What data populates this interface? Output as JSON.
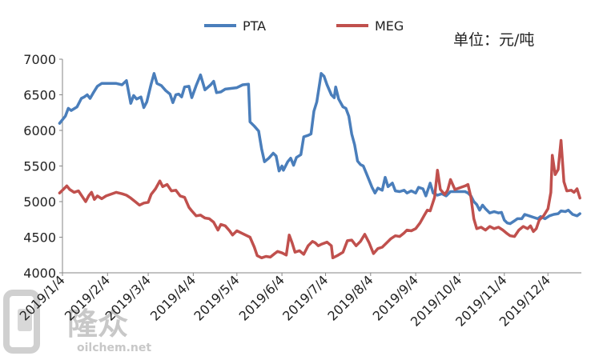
{
  "chart_data": {
    "type": "line",
    "title": "",
    "unit_label": "单位：元/吨",
    "xlabel": "",
    "ylabel": "",
    "ylim": [
      4000,
      7000
    ],
    "y_ticks": [
      "7000",
      "6500",
      "6000",
      "5500",
      "5000",
      "4500",
      "4000"
    ],
    "x_ticks": [
      "2019/1/4",
      "2019/2/4",
      "2019/3/4",
      "2019/4/4",
      "2019/5/4",
      "2019/6/4",
      "2019/7/4",
      "2019/8/4",
      "2019/9/4",
      "2019/10/4",
      "2019/11/4",
      "2019/12/4"
    ],
    "legend_position": "top-center",
    "grid": false,
    "series": [
      {
        "name": "PTA",
        "color": "#4a7ebb",
        "points": [
          [
            "2019-01-02",
            6100
          ],
          [
            "2019-01-06",
            6200
          ],
          [
            "2019-01-08",
            6310
          ],
          [
            "2019-01-10",
            6280
          ],
          [
            "2019-01-14",
            6330
          ],
          [
            "2019-01-17",
            6450
          ],
          [
            "2019-01-19",
            6470
          ],
          [
            "2019-01-21",
            6500
          ],
          [
            "2019-01-23",
            6450
          ],
          [
            "2019-01-25",
            6520
          ],
          [
            "2019-01-28",
            6620
          ],
          [
            "2019-01-31",
            6660
          ],
          [
            "2019-02-10",
            6660
          ],
          [
            "2019-02-14",
            6640
          ],
          [
            "2019-02-17",
            6700
          ],
          [
            "2019-02-20",
            6380
          ],
          [
            "2019-02-22",
            6490
          ],
          [
            "2019-02-24",
            6440
          ],
          [
            "2019-02-27",
            6470
          ],
          [
            "2019-03-01",
            6320
          ],
          [
            "2019-03-03",
            6400
          ],
          [
            "2019-03-06",
            6650
          ],
          [
            "2019-03-08",
            6800
          ],
          [
            "2019-03-10",
            6660
          ],
          [
            "2019-03-13",
            6630
          ],
          [
            "2019-03-16",
            6560
          ],
          [
            "2019-03-19",
            6510
          ],
          [
            "2019-03-21",
            6390
          ],
          [
            "2019-03-23",
            6500
          ],
          [
            "2019-03-25",
            6510
          ],
          [
            "2019-03-27",
            6470
          ],
          [
            "2019-03-29",
            6610
          ],
          [
            "2019-04-01",
            6620
          ],
          [
            "2019-04-03",
            6460
          ],
          [
            "2019-04-06",
            6630
          ],
          [
            "2019-04-09",
            6780
          ],
          [
            "2019-04-12",
            6570
          ],
          [
            "2019-04-16",
            6640
          ],
          [
            "2019-04-18",
            6690
          ],
          [
            "2019-04-20",
            6530
          ],
          [
            "2019-04-23",
            6540
          ],
          [
            "2019-04-26",
            6580
          ],
          [
            "2019-05-04",
            6600
          ],
          [
            "2019-05-08",
            6640
          ],
          [
            "2019-05-12",
            6650
          ],
          [
            "2019-05-13",
            6120
          ],
          [
            "2019-05-16",
            6060
          ],
          [
            "2019-05-19",
            5990
          ],
          [
            "2019-05-21",
            5740
          ],
          [
            "2019-05-23",
            5560
          ],
          [
            "2019-05-26",
            5610
          ],
          [
            "2019-05-29",
            5680
          ],
          [
            "2019-05-31",
            5640
          ],
          [
            "2019-06-02",
            5430
          ],
          [
            "2019-06-04",
            5500
          ],
          [
            "2019-06-05",
            5440
          ],
          [
            "2019-06-08",
            5560
          ],
          [
            "2019-06-10",
            5610
          ],
          [
            "2019-06-12",
            5510
          ],
          [
            "2019-06-14",
            5620
          ],
          [
            "2019-06-17",
            5660
          ],
          [
            "2019-06-19",
            5910
          ],
          [
            "2019-06-22",
            5930
          ],
          [
            "2019-06-24",
            5950
          ],
          [
            "2019-06-26",
            6270
          ],
          [
            "2019-06-28",
            6400
          ],
          [
            "2019-07-01",
            6800
          ],
          [
            "2019-07-03",
            6760
          ],
          [
            "2019-07-05",
            6640
          ],
          [
            "2019-07-08",
            6500
          ],
          [
            "2019-07-10",
            6460
          ],
          [
            "2019-07-11",
            6610
          ],
          [
            "2019-07-13",
            6440
          ],
          [
            "2019-07-16",
            6330
          ],
          [
            "2019-07-18",
            6310
          ],
          [
            "2019-07-20",
            6200
          ],
          [
            "2019-07-22",
            5950
          ],
          [
            "2019-07-24",
            5800
          ],
          [
            "2019-07-26",
            5570
          ],
          [
            "2019-07-28",
            5520
          ],
          [
            "2019-07-30",
            5500
          ],
          [
            "2019-08-01",
            5400
          ],
          [
            "2019-08-03",
            5300
          ],
          [
            "2019-08-05",
            5200
          ],
          [
            "2019-08-07",
            5120
          ],
          [
            "2019-08-09",
            5190
          ],
          [
            "2019-08-12",
            5160
          ],
          [
            "2019-08-14",
            5340
          ],
          [
            "2019-08-16",
            5210
          ],
          [
            "2019-08-19",
            5260
          ],
          [
            "2019-08-21",
            5150
          ],
          [
            "2019-08-24",
            5140
          ],
          [
            "2019-08-27",
            5160
          ],
          [
            "2019-08-29",
            5120
          ],
          [
            "2019-09-01",
            5150
          ],
          [
            "2019-09-04",
            5120
          ],
          [
            "2019-09-06",
            5200
          ],
          [
            "2019-09-09",
            5180
          ],
          [
            "2019-09-11",
            5080
          ],
          [
            "2019-09-14",
            5260
          ],
          [
            "2019-09-16",
            5120
          ],
          [
            "2019-09-19",
            5090
          ],
          [
            "2019-09-22",
            5110
          ],
          [
            "2019-09-25",
            5080
          ],
          [
            "2019-09-28",
            5140
          ],
          [
            "2019-10-08",
            5140
          ],
          [
            "2019-10-10",
            5120
          ],
          [
            "2019-10-12",
            5080
          ],
          [
            "2019-10-14",
            5000
          ],
          [
            "2019-10-16",
            4960
          ],
          [
            "2019-10-18",
            4880
          ],
          [
            "2019-10-20",
            4950
          ],
          [
            "2019-10-22",
            4900
          ],
          [
            "2019-10-25",
            4840
          ],
          [
            "2019-10-28",
            4860
          ],
          [
            "2019-10-31",
            4840
          ],
          [
            "2019-11-02",
            4850
          ],
          [
            "2019-11-04",
            4740
          ],
          [
            "2019-11-06",
            4700
          ],
          [
            "2019-11-08",
            4690
          ],
          [
            "2019-11-11",
            4730
          ],
          [
            "2019-11-13",
            4760
          ],
          [
            "2019-11-16",
            4760
          ],
          [
            "2019-11-18",
            4820
          ],
          [
            "2019-11-21",
            4800
          ],
          [
            "2019-11-24",
            4780
          ],
          [
            "2019-11-27",
            4760
          ],
          [
            "2019-11-29",
            4790
          ],
          [
            "2019-12-02",
            4760
          ],
          [
            "2019-12-05",
            4800
          ],
          [
            "2019-12-08",
            4820
          ],
          [
            "2019-12-11",
            4830
          ],
          [
            "2019-12-13",
            4870
          ],
          [
            "2019-12-16",
            4860
          ],
          [
            "2019-12-18",
            4880
          ],
          [
            "2019-12-21",
            4820
          ],
          [
            "2019-12-24",
            4800
          ],
          [
            "2019-12-26",
            4830
          ]
        ]
      },
      {
        "name": "MEG",
        "color": "#c0504d",
        "points": [
          [
            "2019-01-02",
            5120
          ],
          [
            "2019-01-05",
            5180
          ],
          [
            "2019-01-07",
            5220
          ],
          [
            "2019-01-09",
            5170
          ],
          [
            "2019-01-12",
            5130
          ],
          [
            "2019-01-15",
            5150
          ],
          [
            "2019-01-18",
            5060
          ],
          [
            "2019-01-20",
            5000
          ],
          [
            "2019-01-22",
            5080
          ],
          [
            "2019-01-24",
            5130
          ],
          [
            "2019-01-26",
            5030
          ],
          [
            "2019-01-28",
            5080
          ],
          [
            "2019-01-31",
            5040
          ],
          [
            "2019-02-03",
            5080
          ],
          [
            "2019-02-10",
            5130
          ],
          [
            "2019-02-14",
            5110
          ],
          [
            "2019-02-17",
            5090
          ],
          [
            "2019-02-20",
            5050
          ],
          [
            "2019-02-23",
            5000
          ],
          [
            "2019-02-26",
            4950
          ],
          [
            "2019-03-01",
            4980
          ],
          [
            "2019-03-04",
            4990
          ],
          [
            "2019-03-06",
            5100
          ],
          [
            "2019-03-09",
            5180
          ],
          [
            "2019-03-12",
            5290
          ],
          [
            "2019-03-14",
            5210
          ],
          [
            "2019-03-17",
            5240
          ],
          [
            "2019-03-20",
            5150
          ],
          [
            "2019-03-23",
            5160
          ],
          [
            "2019-03-26",
            5080
          ],
          [
            "2019-03-29",
            5060
          ],
          [
            "2019-04-01",
            4920
          ],
          [
            "2019-04-03",
            4870
          ],
          [
            "2019-04-06",
            4800
          ],
          [
            "2019-04-09",
            4810
          ],
          [
            "2019-04-12",
            4770
          ],
          [
            "2019-04-15",
            4760
          ],
          [
            "2019-04-18",
            4710
          ],
          [
            "2019-04-21",
            4600
          ],
          [
            "2019-04-23",
            4680
          ],
          [
            "2019-04-26",
            4660
          ],
          [
            "2019-04-29",
            4590
          ],
          [
            "2019-05-01",
            4530
          ],
          [
            "2019-05-04",
            4590
          ],
          [
            "2019-05-07",
            4560
          ],
          [
            "2019-05-10",
            4530
          ],
          [
            "2019-05-13",
            4500
          ],
          [
            "2019-05-16",
            4360
          ],
          [
            "2019-05-18",
            4240
          ],
          [
            "2019-05-21",
            4210
          ],
          [
            "2019-05-24",
            4230
          ],
          [
            "2019-05-27",
            4220
          ],
          [
            "2019-05-30",
            4270
          ],
          [
            "2019-06-01",
            4300
          ],
          [
            "2019-06-04",
            4280
          ],
          [
            "2019-06-07",
            4250
          ],
          [
            "2019-06-09",
            4530
          ],
          [
            "2019-06-11",
            4420
          ],
          [
            "2019-06-13",
            4290
          ],
          [
            "2019-06-16",
            4310
          ],
          [
            "2019-06-19",
            4260
          ],
          [
            "2019-06-22",
            4380
          ],
          [
            "2019-06-25",
            4440
          ],
          [
            "2019-06-27",
            4420
          ],
          [
            "2019-06-29",
            4380
          ],
          [
            "2019-07-01",
            4400
          ],
          [
            "2019-07-05",
            4430
          ],
          [
            "2019-07-08",
            4380
          ],
          [
            "2019-07-09",
            4210
          ],
          [
            "2019-07-12",
            4240
          ],
          [
            "2019-07-16",
            4290
          ],
          [
            "2019-07-19",
            4450
          ],
          [
            "2019-07-22",
            4460
          ],
          [
            "2019-07-25",
            4380
          ],
          [
            "2019-07-28",
            4440
          ],
          [
            "2019-07-31",
            4540
          ],
          [
            "2019-08-03",
            4420
          ],
          [
            "2019-08-06",
            4270
          ],
          [
            "2019-08-09",
            4340
          ],
          [
            "2019-08-12",
            4360
          ],
          [
            "2019-08-15",
            4420
          ],
          [
            "2019-08-18",
            4480
          ],
          [
            "2019-08-21",
            4520
          ],
          [
            "2019-08-24",
            4510
          ],
          [
            "2019-08-27",
            4560
          ],
          [
            "2019-08-29",
            4600
          ],
          [
            "2019-09-01",
            4590
          ],
          [
            "2019-09-04",
            4620
          ],
          [
            "2019-09-07",
            4700
          ],
          [
            "2019-09-10",
            4810
          ],
          [
            "2019-09-12",
            4880
          ],
          [
            "2019-09-14",
            4870
          ],
          [
            "2019-09-17",
            5060
          ],
          [
            "2019-09-19",
            5440
          ],
          [
            "2019-09-21",
            5170
          ],
          [
            "2019-09-24",
            5100
          ],
          [
            "2019-09-26",
            5160
          ],
          [
            "2019-09-28",
            5310
          ],
          [
            "2019-10-01",
            5170
          ],
          [
            "2019-10-08",
            5220
          ],
          [
            "2019-10-10",
            5240
          ],
          [
            "2019-10-12",
            5060
          ],
          [
            "2019-10-14",
            4760
          ],
          [
            "2019-10-16",
            4620
          ],
          [
            "2019-10-19",
            4640
          ],
          [
            "2019-10-22",
            4600
          ],
          [
            "2019-10-25",
            4650
          ],
          [
            "2019-10-28",
            4620
          ],
          [
            "2019-10-31",
            4640
          ],
          [
            "2019-11-03",
            4600
          ],
          [
            "2019-11-06",
            4550
          ],
          [
            "2019-11-08",
            4520
          ],
          [
            "2019-11-11",
            4510
          ],
          [
            "2019-11-14",
            4600
          ],
          [
            "2019-11-17",
            4650
          ],
          [
            "2019-11-20",
            4620
          ],
          [
            "2019-11-22",
            4660
          ],
          [
            "2019-11-24",
            4580
          ],
          [
            "2019-11-26",
            4620
          ],
          [
            "2019-11-28",
            4740
          ],
          [
            "2019-12-01",
            4800
          ],
          [
            "2019-12-04",
            4900
          ],
          [
            "2019-12-06",
            5130
          ],
          [
            "2019-12-07",
            5650
          ],
          [
            "2019-12-09",
            5380
          ],
          [
            "2019-12-11",
            5450
          ],
          [
            "2019-12-13",
            5860
          ],
          [
            "2019-12-15",
            5280
          ],
          [
            "2019-12-17",
            5150
          ],
          [
            "2019-12-20",
            5160
          ],
          [
            "2019-12-22",
            5130
          ],
          [
            "2019-12-24",
            5180
          ],
          [
            "2019-12-26",
            5050
          ]
        ]
      }
    ]
  },
  "watermark": {
    "brand_cn": "隆众",
    "site": "oilchem.net"
  }
}
